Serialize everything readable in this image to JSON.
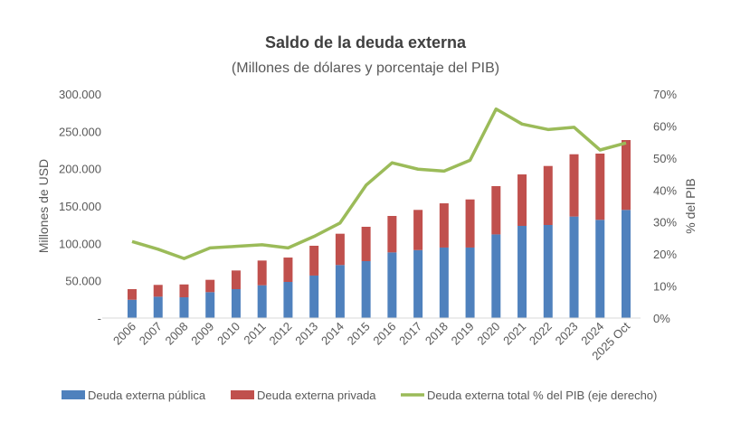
{
  "chart_data": {
    "type": "bar",
    "title": "Saldo de la deuda externa",
    "subtitle": "(Millones de dólares y porcentaje del PIB)",
    "ylabel": "Millones de USD",
    "y2label": "% del PIB",
    "ylim": [
      0,
      300000
    ],
    "y2lim": [
      0,
      70
    ],
    "yticks": [
      "-",
      "50.000",
      "100.000",
      "150.000",
      "200.000",
      "250.000",
      "300.000"
    ],
    "y2ticks": [
      "0%",
      "10%",
      "20%",
      "30%",
      "40%",
      "50%",
      "60%",
      "70%"
    ],
    "grid": false,
    "legend_position": "bottom",
    "categories": [
      "2006",
      "2007",
      "2008",
      "2009",
      "2010",
      "2011",
      "2012",
      "2013",
      "2014",
      "2015",
      "2016",
      "2017",
      "2018",
      "2019",
      "2020",
      "2021",
      "2022",
      "2023",
      "2024",
      "2025 Oct"
    ],
    "series": [
      {
        "name": "Deuda externa pública",
        "type": "bar",
        "stack": true,
        "color": "#4f81bd",
        "values": [
          24500,
          28600,
          27800,
          34700,
          38700,
          43900,
          48400,
          56900,
          71000,
          76200,
          87900,
          91000,
          94400,
          94400,
          112000,
          123400,
          124600,
          135900,
          131500,
          144800
        ]
      },
      {
        "name": "Deuda externa privada",
        "type": "bar",
        "stack": true,
        "color": "#c0504d",
        "values": [
          14200,
          15800,
          17200,
          16500,
          25000,
          33100,
          32600,
          39900,
          41900,
          46000,
          48800,
          53800,
          59200,
          64400,
          64600,
          68900,
          79000,
          83400,
          88700,
          93500
        ]
      },
      {
        "name": "Deuda externa total % del PIB (eje derecho)",
        "type": "line",
        "axis": "right",
        "color": "#9bbb59",
        "values": [
          23.9,
          21.5,
          18.6,
          21.9,
          22.4,
          22.9,
          21.9,
          25.5,
          29.7,
          41.5,
          48.5,
          46.5,
          45.9,
          49.3,
          65.3,
          60.6,
          58.9,
          59.6,
          52.5,
          54.7
        ]
      }
    ]
  }
}
